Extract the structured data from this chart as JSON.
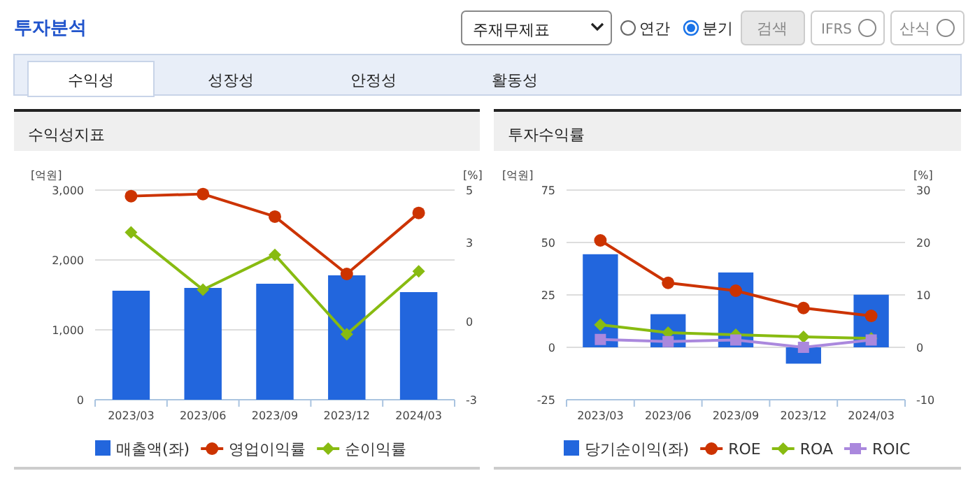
{
  "chart_data": [
    {
      "type": "other",
      "title": "투자분석",
      "annotations": [
        "주재무제표",
        "연간",
        "분기",
        "검색",
        "IFRS",
        "산식",
        "수익성",
        "성장성",
        "안정성",
        "활동성"
      ]
    },
    {
      "type": "bar",
      "title": "수익성지표",
      "ylabel": "[억원]",
      "y2label": "[%]",
      "categories": [
        "2023/03",
        "2023/06",
        "2023/09",
        "2023/12",
        "2024/03"
      ],
      "ylim": [
        0,
        3000
      ],
      "yticks": [
        0,
        {
          "value": 1000,
          "label": "1,000"
        },
        {
          "value": 2000,
          "label": "2,000"
        },
        {
          "value": 3000,
          "label": "3,000"
        }
      ],
      "y2lim": [
        -3,
        5
      ],
      "y2ticks": [
        -3,
        0,
        3,
        5
      ],
      "grid": "y",
      "legend": "bottom",
      "series": [
        {
          "name": "매출액(좌)",
          "type": "bar",
          "color": "#2266dd",
          "values": [
            1560,
            1600,
            1660,
            1780,
            1540
          ]
        },
        {
          "name": "영업이익률",
          "type": "line",
          "axis": "y2",
          "marker": "circle",
          "color": "#cc3300",
          "values": [
            4.77,
            4.85,
            3.99,
            1.8,
            4.13
          ]
        },
        {
          "name": "순이익률",
          "type": "line",
          "axis": "y2",
          "marker": "diamond",
          "color": "#88bb11",
          "values": [
            3.39,
            1.2,
            2.53,
            -0.5,
            1.9
          ]
        }
      ]
    },
    {
      "type": "bar",
      "title": "투자수익률",
      "ylabel": "[억원]",
      "y2label": "[%]",
      "categories": [
        "2023/03",
        "2023/06",
        "2023/09",
        "2023/12",
        "2024/03"
      ],
      "ylim": [
        -25,
        75
      ],
      "yticks": [
        -25,
        0,
        25,
        50,
        75
      ],
      "y2lim": [
        -10,
        30
      ],
      "y2ticks": [
        -10,
        0,
        10,
        20,
        30
      ],
      "grid": "y",
      "legend": "bottom",
      "series": [
        {
          "name": "당기순이익(좌)",
          "type": "bar",
          "color": "#2266dd",
          "values": [
            44.4,
            15.8,
            35.7,
            -7.8,
            25.1
          ]
        },
        {
          "name": "ROE",
          "type": "line",
          "axis": "y2",
          "marker": "circle",
          "color": "#cc3300",
          "values": [
            20.4,
            12.3,
            10.8,
            7.5,
            6.0
          ]
        },
        {
          "name": "ROA",
          "type": "line",
          "axis": "y2",
          "marker": "diamond",
          "color": "#88bb11",
          "values": [
            4.3,
            2.8,
            2.4,
            2.0,
            1.7
          ]
        },
        {
          "name": "ROIC",
          "type": "line",
          "axis": "y2",
          "marker": "square",
          "color": "#aa88dd",
          "values": [
            1.5,
            1.1,
            1.4,
            0.0,
            1.4
          ]
        }
      ]
    }
  ]
}
